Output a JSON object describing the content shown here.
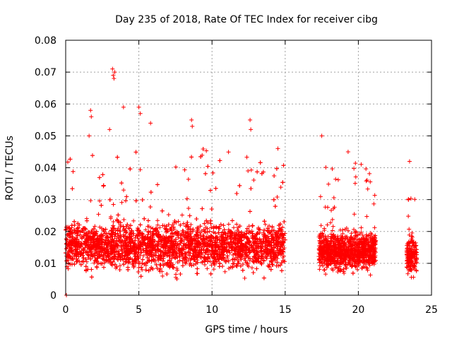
{
  "chart_data": {
    "type": "scatter",
    "title": "Day 235 of 2018, Rate Of TEC Index for receiver cibg",
    "xlabel": "GPS time / hours",
    "ylabel": "ROTI / TECUs",
    "xlim": [
      0,
      25
    ],
    "ylim": [
      0,
      0.08
    ],
    "x_ticks": [
      "0",
      "5",
      "10",
      "15",
      "20",
      "25"
    ],
    "y_ticks": [
      "0",
      "0.01",
      "0.02",
      "0.03",
      "0.04",
      "0.05",
      "0.06",
      "0.07",
      "0.08"
    ],
    "grid": true,
    "marker": "+",
    "color": "#ff0000",
    "series": [
      {
        "segments": [
          {
            "x_start": 0.0,
            "x_end": 15.0,
            "y_low": 0.005,
            "y_high": 0.032
          },
          {
            "x_start": 17.3,
            "x_end": 21.2,
            "y_low": 0.006,
            "y_high": 0.028
          },
          {
            "x_start": 23.3,
            "x_end": 24.0,
            "y_low": 0.005,
            "y_high": 0.026
          }
        ],
        "notable_points": [
          {
            "x": 3.2,
            "y": 0.071
          },
          {
            "x": 3.25,
            "y": 0.069
          },
          {
            "x": 3.3,
            "y": 0.068
          },
          {
            "x": 3.35,
            "y": 0.07
          },
          {
            "x": 3.95,
            "y": 0.059
          },
          {
            "x": 5.0,
            "y": 0.059
          },
          {
            "x": 5.1,
            "y": 0.057
          },
          {
            "x": 1.7,
            "y": 0.058
          },
          {
            "x": 1.75,
            "y": 0.056
          },
          {
            "x": 5.8,
            "y": 0.054
          },
          {
            "x": 8.6,
            "y": 0.055
          },
          {
            "x": 8.65,
            "y": 0.053
          },
          {
            "x": 12.6,
            "y": 0.055
          },
          {
            "x": 12.65,
            "y": 0.052
          },
          {
            "x": 17.5,
            "y": 0.05
          },
          {
            "x": 19.3,
            "y": 0.045
          },
          {
            "x": 23.5,
            "y": 0.042
          },
          {
            "x": 3.0,
            "y": 0.052
          },
          {
            "x": 1.6,
            "y": 0.05
          },
          {
            "x": 14.5,
            "y": 0.046
          },
          {
            "x": 0.05,
            "y": 0.0
          }
        ]
      }
    ]
  }
}
